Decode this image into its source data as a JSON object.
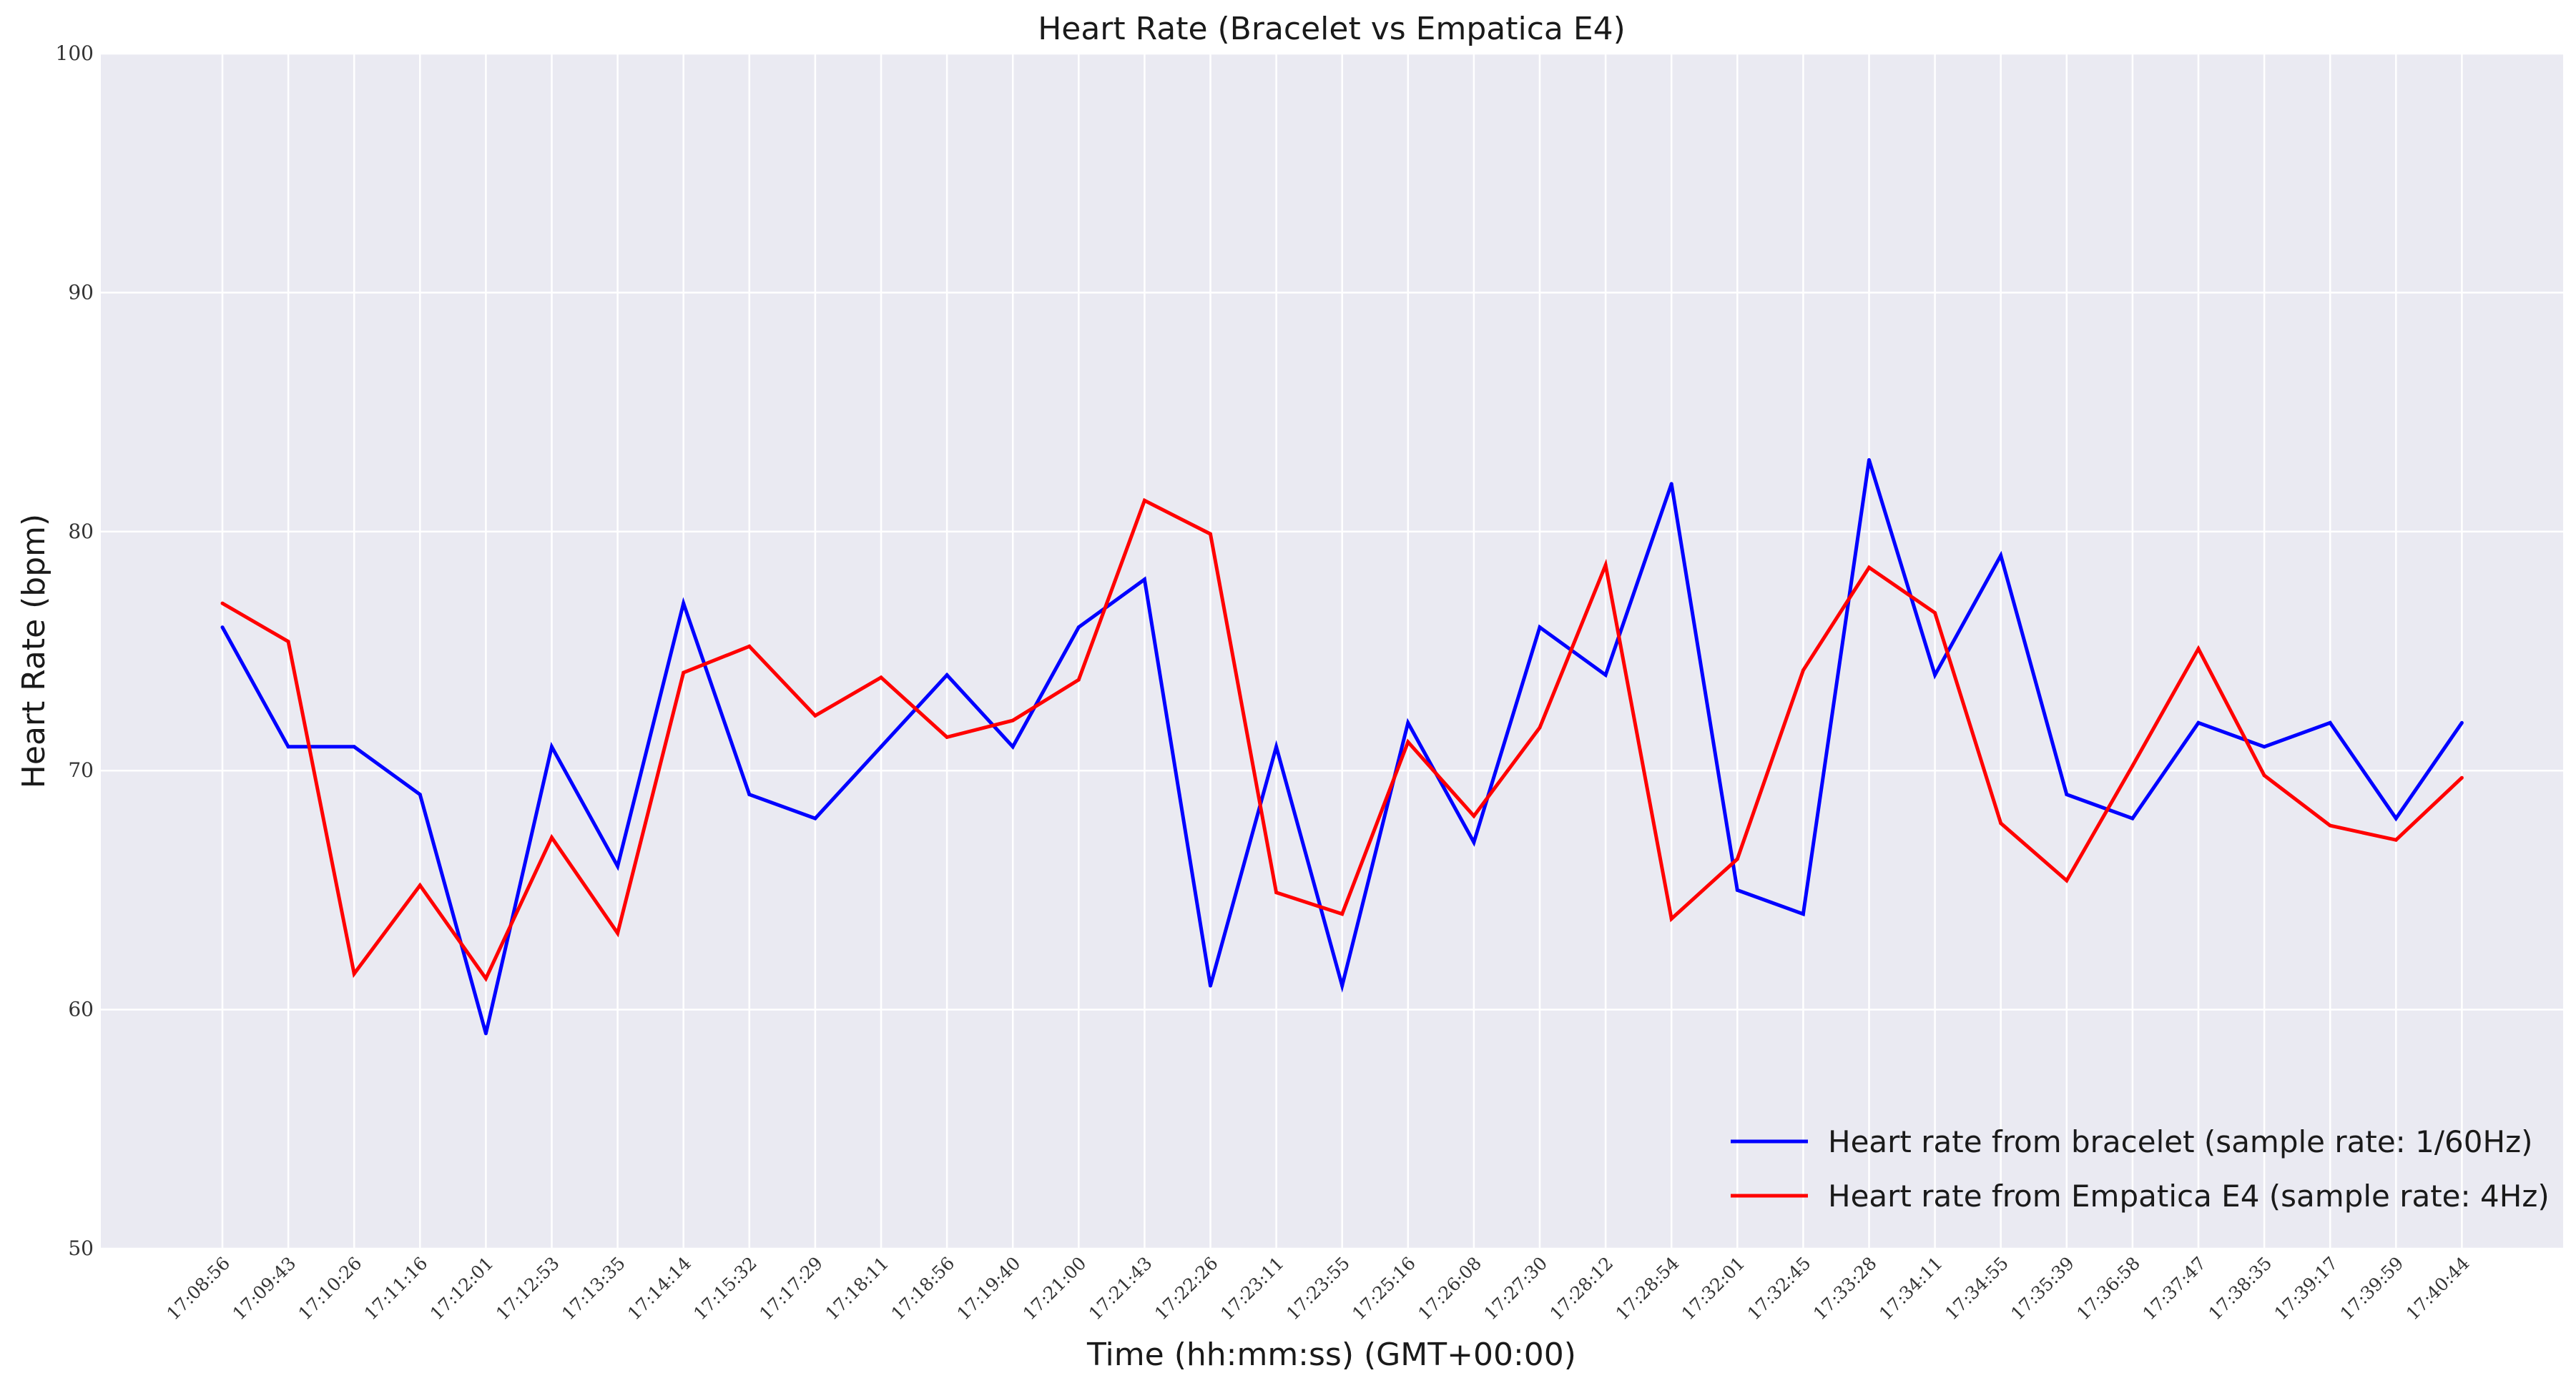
{
  "chart_data": {
    "type": "line",
    "title": "Heart Rate (Bracelet vs Empatica E4)",
    "xlabel": "Time (hh:mm:ss) (GMT+00:00)",
    "ylabel": "Heart Rate (bpm)",
    "ylim": [
      50,
      100
    ],
    "yticks": [
      "50",
      "60",
      "70",
      "80",
      "90",
      "100"
    ],
    "grid": true,
    "legend_position": "bottom-right",
    "categories": [
      "17:08:56",
      "17:09:43",
      "17:10:26",
      "17:11:16",
      "17:12:01",
      "17:12:53",
      "17:13:35",
      "17:14:14",
      "17:15:32",
      "17:17:29",
      "17:18:11",
      "17:18:56",
      "17:19:40",
      "17:21:00",
      "17:21:43",
      "17:22:26",
      "17:23:11",
      "17:23:55",
      "17:25:16",
      "17:26:08",
      "17:27:30",
      "17:28:12",
      "17:28:54",
      "17:32:01",
      "17:32:45",
      "17:33:28",
      "17:34:11",
      "17:34:55",
      "17:35:39",
      "17:36:58",
      "17:37:47",
      "17:38:35",
      "17:39:17",
      "17:39:59",
      "17:40:44"
    ],
    "series": [
      {
        "name": "Heart rate from bracelet (sample rate: 1/60Hz)",
        "color": "#0000ff",
        "values": [
          76,
          71,
          71,
          69,
          59,
          71,
          66,
          77,
          69,
          68,
          71,
          74,
          71,
          76,
          78,
          61,
          71,
          61,
          72,
          67,
          76,
          74,
          82,
          65,
          64,
          83,
          74,
          79,
          69,
          68,
          72,
          71,
          72,
          68,
          72
        ]
      },
      {
        "name": "Heart rate from Empatica E4 (sample rate: 4Hz)",
        "color": "#ff0000",
        "values": [
          77,
          75.4,
          61.5,
          65.2,
          61.3,
          67.2,
          63.2,
          74.1,
          75.2,
          72.3,
          73.9,
          71.4,
          72.1,
          73.8,
          81.3,
          79.9,
          64.9,
          64,
          71.2,
          68.1,
          71.8,
          78.6,
          63.8,
          66.3,
          74.2,
          78.5,
          76.6,
          67.8,
          65.4,
          70.2,
          75.1,
          69.8,
          67.7,
          67.1,
          69.7
        ]
      }
    ]
  },
  "colors": {
    "plot_background": "#eaeaf2",
    "grid": "#ffffff"
  }
}
